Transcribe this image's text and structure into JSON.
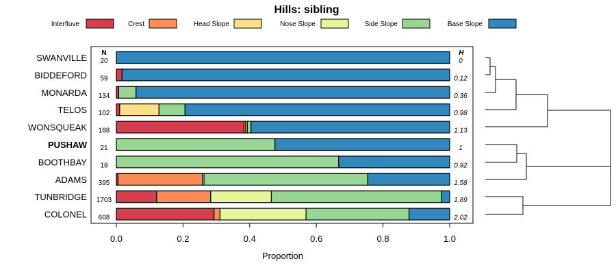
{
  "chart_data": {
    "type": "bar",
    "orientation": "horizontal",
    "stacked": true,
    "title": "Hills: sibling",
    "xlabel": "Proportion",
    "xlim": [
      0,
      1
    ],
    "xticks": [
      "0.0",
      "0.2",
      "0.4",
      "0.6",
      "0.8",
      "1.0"
    ],
    "n_header": "N",
    "h_header": "H",
    "highlight_category": "PUSHAW",
    "colors": {
      "Interfluve": "#d53e4f",
      "Crest": "#fc8d59",
      "Head Slope": "#fee08b",
      "Nose Slope": "#e6f598",
      "Side Slope": "#99d594",
      "Base Slope": "#3288bd"
    },
    "series_names": [
      "Interfluve",
      "Crest",
      "Head Slope",
      "Nose Slope",
      "Side Slope",
      "Base Slope"
    ],
    "categories": [
      "SWANVILLE",
      "BIDDEFORD",
      "MONARDA",
      "TELOS",
      "WONSQUEAK",
      "PUSHAW",
      "BOOTHBAY",
      "ADAMS",
      "TUNBRIDGE",
      "COLONEL"
    ],
    "n": [
      "20",
      "59",
      "134",
      "102",
      "188",
      "21",
      "18",
      "395",
      "1703",
      "608"
    ],
    "h": [
      "0",
      "0.12",
      "0.36",
      "0.98",
      "1.13",
      "1",
      "0.92",
      "1.58",
      "1.89",
      "2.02"
    ],
    "rows": [
      [
        0.0,
        0.0,
        0.0,
        0.0,
        0.0,
        1.0
      ],
      [
        0.017,
        0.0,
        0.0,
        0.0,
        0.0,
        0.983
      ],
      [
        0.007,
        0.0,
        0.0,
        0.0,
        0.052,
        0.941
      ],
      [
        0.01,
        0.0,
        0.118,
        0.0,
        0.078,
        0.794
      ],
      [
        0.383,
        0.005,
        0.0,
        0.005,
        0.011,
        0.596
      ],
      [
        0.0,
        0.0,
        0.0,
        0.0,
        0.476,
        0.524
      ],
      [
        0.0,
        0.0,
        0.0,
        0.0,
        0.667,
        0.333
      ],
      [
        0.005,
        0.253,
        0.0,
        0.005,
        0.491,
        0.246
      ],
      [
        0.121,
        0.162,
        0.0,
        0.182,
        0.511,
        0.024
      ],
      [
        0.293,
        0.018,
        0.0,
        0.258,
        0.309,
        0.122
      ]
    ]
  }
}
